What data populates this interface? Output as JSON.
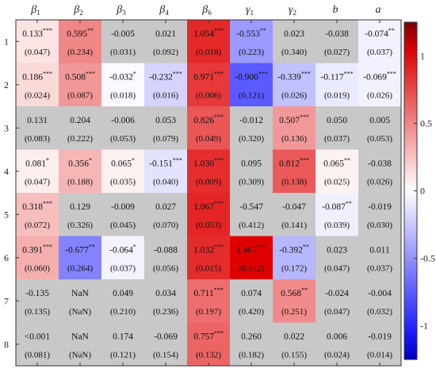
{
  "chart_data": {
    "type": "heatmap",
    "columns": [
      {
        "sym": "β",
        "sub": "1"
      },
      {
        "sym": "β",
        "sub": "2"
      },
      {
        "sym": "β",
        "sub": "3"
      },
      {
        "sym": "β",
        "sub": "4"
      },
      {
        "sym": "β",
        "sub": "6"
      },
      {
        "sym": "γ",
        "sub": "1"
      },
      {
        "sym": "γ",
        "sub": "2"
      },
      {
        "sym": "b",
        "sub": ""
      },
      {
        "sym": "a",
        "sub": ""
      }
    ],
    "rows": [
      "1",
      "2",
      "3",
      "4",
      "5",
      "6",
      "7",
      "8"
    ],
    "values": [
      [
        0.133,
        0.595,
        -0.005,
        0.021,
        1.054,
        -0.553,
        0.023,
        -0.038,
        -0.074
      ],
      [
        0.186,
        0.508,
        -0.032,
        -0.232,
        0.971,
        -0.9,
        -0.339,
        -0.117,
        -0.069
      ],
      [
        0.131,
        0.204,
        -0.006,
        0.053,
        0.826,
        -0.012,
        0.507,
        0.05,
        0.005
      ],
      [
        0.081,
        0.356,
        0.065,
        -0.151,
        1.03,
        0.095,
        0.812,
        0.065,
        -0.038
      ],
      [
        0.318,
        0.129,
        -0.009,
        0.027,
        1.067,
        -0.547,
        -0.047,
        -0.087,
        -0.019
      ],
      [
        0.391,
        -0.677,
        -0.064,
        -0.088,
        1.032,
        1.467,
        -0.392,
        0.023,
        0.011
      ],
      [
        -0.135,
        null,
        0.049,
        0.034,
        0.711,
        0.074,
        0.568,
        -0.024,
        -0.004
      ],
      [
        -0.001,
        null,
        0.174,
        -0.069,
        0.757,
        0.26,
        0.022,
        0.006,
        -0.019
      ]
    ],
    "labels": [
      [
        "0.133",
        "0.595",
        "-0.005",
        "0.021",
        "1.054",
        "-0.553",
        "0.023",
        "-0.038",
        "-0.074"
      ],
      [
        "0.186",
        "0.508",
        "-0.032",
        "-0.232",
        "0.971",
        "-0.900",
        "-0.339",
        "-0.117",
        "-0.069"
      ],
      [
        "0.131",
        "0.204",
        "-0.006",
        "0.053",
        "0.826",
        "-0.012",
        "0.507",
        "0.050",
        "0.005"
      ],
      [
        "0.081",
        "0.356",
        "0.065",
        "-0.151",
        "1.030",
        "0.095",
        "0.812",
        "0.065",
        "-0.038"
      ],
      [
        "0.318",
        "0.129",
        "-0.009",
        "0.027",
        "1.067",
        "-0.547",
        "-0.047",
        "-0.087",
        "-0.019"
      ],
      [
        "0.391",
        "-0.677",
        "-0.064",
        "-0.088",
        "1.032",
        "1.467",
        "-0.392",
        "0.023",
        "0.011"
      ],
      [
        "-0.135",
        "NaN",
        "0.049",
        "0.034",
        "0.711",
        "0.074",
        "0.568",
        "-0.024",
        "-0.004"
      ],
      [
        "<0.001",
        "NaN",
        "0.174",
        "-0.069",
        "0.757",
        "0.260",
        "0.022",
        "0.006",
        "-0.019"
      ]
    ],
    "stars": [
      [
        "***",
        "**",
        "",
        "",
        "***",
        "**",
        "",
        "",
        "**"
      ],
      [
        "***",
        "***",
        "*",
        "***",
        "***",
        "***",
        "***",
        "***",
        "***"
      ],
      [
        "",
        "",
        "",
        "",
        "***",
        "",
        "***",
        "",
        ""
      ],
      [
        "*",
        "*",
        "*",
        "***",
        "***",
        "",
        "***",
        "**",
        ""
      ],
      [
        "***",
        "",
        "",
        "",
        "***",
        "",
        "",
        "**",
        ""
      ],
      [
        "***",
        "**",
        "*",
        "",
        "***",
        "***",
        "**",
        "",
        ""
      ],
      [
        "",
        "",
        "",
        "",
        "***",
        "",
        "**",
        "",
        ""
      ],
      [
        "",
        "",
        "",
        "",
        "***",
        "",
        "",
        "",
        ""
      ]
    ],
    "std_errors": [
      [
        "(0.047)",
        "(0.234)",
        "(0.031)",
        "(0.092)",
        "(0.018)",
        "(0.223)",
        "(0.340)",
        "(0.027)",
        "(0.037)"
      ],
      [
        "(0.024)",
        "(0.087)",
        "(0.018)",
        "(0.016)",
        "(0.006)",
        "(0.121)",
        "(0.026)",
        "(0.019)",
        "(0.026)"
      ],
      [
        "(0.083)",
        "(0.222)",
        "(0.053)",
        "(0.079)",
        "(0.049)",
        "(0.320)",
        "(0.136)",
        "(0.037)",
        "(0.053)"
      ],
      [
        "(0.047)",
        "(0.188)",
        "(0.035)",
        "(0.040)",
        "(0.009)",
        "(0.309)",
        "(0.138)",
        "(0.025)",
        "(0.026)"
      ],
      [
        "(0.072)",
        "(0.326)",
        "(0.045)",
        "(0.070)",
        "(0.053)",
        "(0.412)",
        "(0.141)",
        "(0.039)",
        "(0.030)"
      ],
      [
        "(0.060)",
        "(0.264)",
        "(0.037)",
        "(0.056)",
        "(0.015)",
        "(0.532)",
        "(0.172)",
        "(0.047)",
        "(0.037)"
      ],
      [
        "(0.135)",
        "(NaN)",
        "(0.210)",
        "(0.236)",
        "(0.197)",
        "(0.420)",
        "(0.251)",
        "(0.047)",
        "(0.032)"
      ],
      [
        "(0.081)",
        "(NaN)",
        "(0.121)",
        "(0.154)",
        "(0.132)",
        "(0.182)",
        "(0.155)",
        "(0.024)",
        "(0.014)"
      ]
    ],
    "significant": [
      [
        true,
        true,
        false,
        false,
        true,
        true,
        false,
        false,
        true
      ],
      [
        true,
        true,
        true,
        true,
        true,
        true,
        true,
        true,
        true
      ],
      [
        false,
        false,
        false,
        false,
        true,
        false,
        true,
        false,
        false
      ],
      [
        true,
        true,
        true,
        true,
        true,
        false,
        true,
        true,
        false
      ],
      [
        true,
        false,
        false,
        false,
        true,
        false,
        false,
        true,
        false
      ],
      [
        true,
        true,
        true,
        false,
        true,
        true,
        true,
        false,
        false
      ],
      [
        false,
        false,
        false,
        false,
        true,
        false,
        true,
        false,
        false
      ],
      [
        false,
        false,
        false,
        false,
        true,
        false,
        false,
        false,
        false
      ]
    ],
    "colorbar": {
      "range": [
        -1.25,
        1.25
      ],
      "ticks": [
        1,
        0.5,
        0,
        -0.5,
        -1
      ],
      "tick_labels": [
        "1",
        "0.5",
        "0",
        "-0.5",
        "-1"
      ],
      "colors": {
        "high": "#e00000",
        "mid": "#ffffff",
        "low": "#1a1aff",
        "nonsignificant": "#c8c8c8"
      }
    },
    "xlabel": "",
    "ylabel": "",
    "title": ""
  }
}
